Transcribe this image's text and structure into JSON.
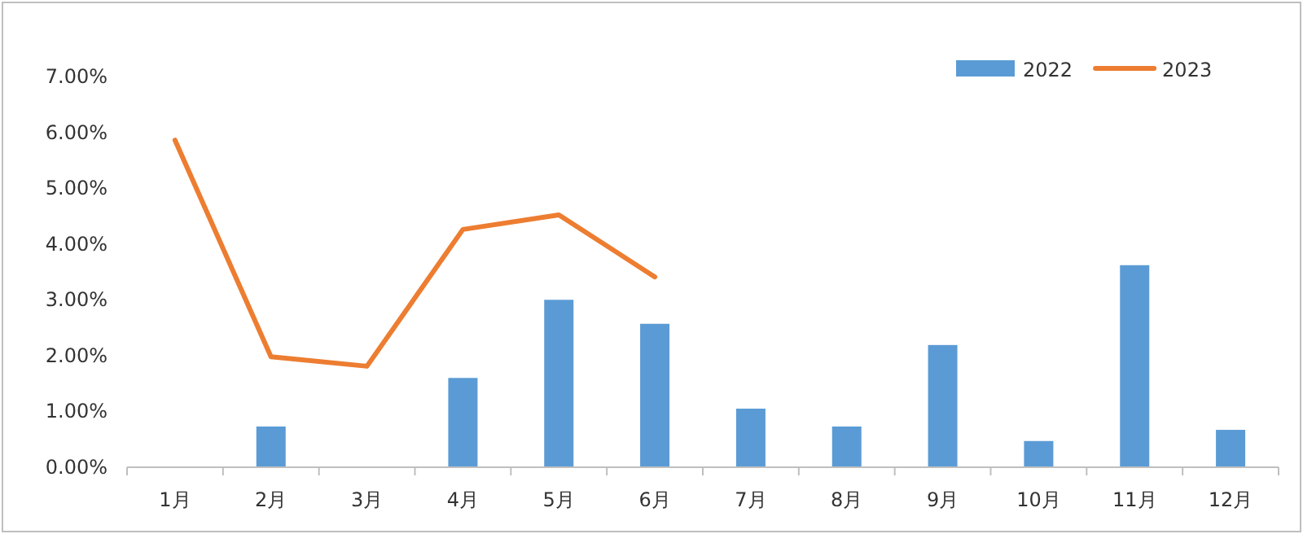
{
  "chart_data": {
    "type": "bar",
    "categories": [
      "1月",
      "2月",
      "3月",
      "4月",
      "5月",
      "6月",
      "7月",
      "8月",
      "9月",
      "10月",
      "11月",
      "12月"
    ],
    "series": [
      {
        "name": "2022",
        "color": "#5b9bd5",
        "values": [
          null,
          0.73,
          null,
          1.6,
          3.0,
          2.57,
          1.05,
          0.73,
          2.19,
          0.47,
          3.62,
          0.67
        ]
      },
      {
        "name": "2023",
        "type": "line",
        "color": "#ed7d31",
        "values": [
          5.86,
          1.98,
          1.81,
          4.26,
          4.52,
          3.41,
          null,
          null,
          null,
          null,
          null,
          null
        ]
      }
    ],
    "ylim": [
      0,
      7
    ],
    "yticks": [
      {
        "value": 0,
        "label": "0.00%"
      },
      {
        "value": 1,
        "label": "1.00%"
      },
      {
        "value": 2,
        "label": "2.00%"
      },
      {
        "value": 3,
        "label": "3.00%"
      },
      {
        "value": 4,
        "label": "4.00%"
      },
      {
        "value": 5,
        "label": "5.00%"
      },
      {
        "value": 6,
        "label": "6.00%"
      },
      {
        "value": 7,
        "label": "7.00%"
      }
    ],
    "grid": false,
    "legend": "top right",
    "marker": "none"
  }
}
